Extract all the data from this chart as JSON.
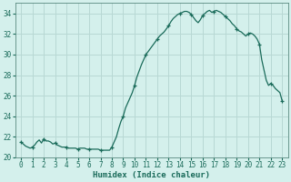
{
  "xlabel": "Humidex (Indice chaleur)",
  "bg_color": "#d4f0ec",
  "grid_color": "#b8d8d4",
  "line_color": "#1a6b5a",
  "marker_color": "#1a6b5a",
  "xlim": [
    -0.5,
    23.5
  ],
  "ylim": [
    20,
    35
  ],
  "yticks": [
    20,
    22,
    24,
    26,
    28,
    30,
    32,
    34
  ],
  "xticks": [
    0,
    1,
    2,
    3,
    4,
    5,
    6,
    7,
    8,
    9,
    10,
    11,
    12,
    13,
    14,
    15,
    16,
    17,
    18,
    19,
    20,
    21,
    22,
    23
  ],
  "x": [
    0,
    0.2,
    0.4,
    0.6,
    0.8,
    1,
    1.2,
    1.4,
    1.6,
    1.8,
    2,
    2.2,
    2.4,
    2.6,
    2.8,
    3,
    3.2,
    3.4,
    3.6,
    3.8,
    4,
    4.2,
    4.4,
    4.6,
    4.8,
    5,
    5.2,
    5.4,
    5.6,
    5.8,
    6,
    6.2,
    6.4,
    6.6,
    6.8,
    7,
    7.2,
    7.4,
    7.6,
    7.8,
    8,
    8.2,
    8.4,
    8.6,
    8.8,
    9,
    9.2,
    9.4,
    9.6,
    9.8,
    10,
    10.2,
    10.4,
    10.6,
    10.8,
    11,
    11.2,
    11.4,
    11.6,
    11.8,
    12,
    12.2,
    12.4,
    12.6,
    12.8,
    13,
    13.2,
    13.4,
    13.6,
    13.8,
    14,
    14.2,
    14.4,
    14.6,
    14.8,
    15,
    15.2,
    15.4,
    15.6,
    15.8,
    16,
    16.2,
    16.4,
    16.6,
    16.8,
    17,
    17.2,
    17.4,
    17.6,
    17.8,
    18,
    18.2,
    18.4,
    18.6,
    18.8,
    19,
    19.2,
    19.4,
    19.6,
    19.8,
    20,
    20.2,
    20.4,
    20.6,
    20.8,
    21,
    21.2,
    21.4,
    21.6,
    21.8,
    22,
    22.2,
    22.4,
    22.6,
    22.8,
    23
  ],
  "y": [
    21.5,
    21.3,
    21.1,
    21.0,
    20.9,
    21.0,
    21.2,
    21.5,
    21.7,
    21.4,
    21.8,
    21.6,
    21.6,
    21.5,
    21.3,
    21.4,
    21.2,
    21.1,
    21.0,
    21.0,
    21.0,
    20.9,
    20.9,
    20.9,
    20.9,
    20.8,
    20.9,
    20.9,
    20.9,
    20.8,
    20.8,
    20.8,
    20.8,
    20.8,
    20.8,
    20.7,
    20.7,
    20.7,
    20.7,
    20.7,
    21.0,
    21.5,
    22.0,
    22.8,
    23.5,
    24.0,
    24.8,
    25.3,
    25.8,
    26.3,
    27.0,
    27.8,
    28.4,
    29.0,
    29.5,
    30.0,
    30.3,
    30.6,
    30.9,
    31.2,
    31.5,
    31.8,
    32.0,
    32.2,
    32.5,
    32.8,
    33.2,
    33.5,
    33.7,
    33.9,
    34.0,
    34.1,
    34.2,
    34.2,
    34.1,
    33.9,
    33.6,
    33.3,
    33.1,
    33.4,
    33.8,
    34.0,
    34.2,
    34.3,
    34.1,
    34.2,
    34.3,
    34.2,
    34.1,
    33.9,
    33.7,
    33.5,
    33.3,
    33.0,
    32.8,
    32.5,
    32.3,
    32.2,
    32.0,
    31.8,
    32.0,
    32.1,
    32.0,
    31.8,
    31.5,
    31.0,
    29.5,
    28.5,
    27.5,
    27.0,
    27.2,
    27.0,
    26.7,
    26.5,
    26.3,
    25.5
  ],
  "marker_x": [
    0,
    1,
    2,
    3,
    4,
    5,
    6,
    7,
    8,
    9,
    10,
    11,
    12,
    13,
    14,
    15,
    16,
    17,
    18,
    19,
    20,
    21,
    22,
    23
  ],
  "marker_y": [
    21.5,
    21.0,
    21.8,
    21.4,
    21.0,
    20.8,
    20.8,
    20.7,
    21.0,
    24.0,
    27.0,
    30.0,
    31.5,
    32.8,
    34.0,
    33.9,
    33.8,
    34.2,
    33.7,
    32.5,
    32.0,
    31.0,
    27.2,
    25.5
  ]
}
